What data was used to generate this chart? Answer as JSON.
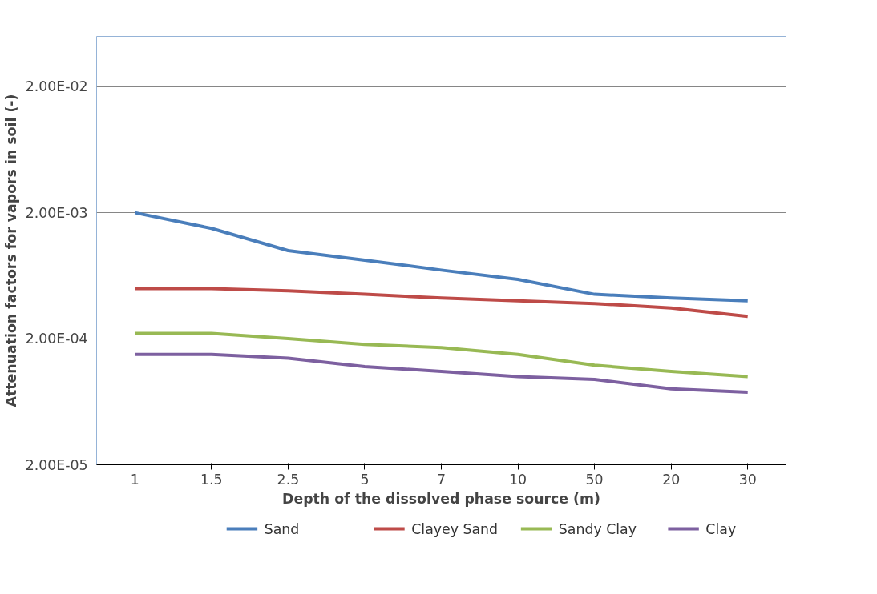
{
  "chart_data": {
    "type": "line",
    "xlabel": "Depth of the dissolved phase source (m)",
    "ylabel": "Attenuation factors for vapors in soil (-)",
    "categories": [
      "1",
      "1.5",
      "2.5",
      "5",
      "7",
      "10",
      "50",
      "20",
      "30"
    ],
    "series": [
      {
        "name": "Sand",
        "color": "#4a7ebb",
        "values": [
          0.002,
          0.0015,
          0.001,
          0.00084,
          0.0007,
          0.00059,
          0.00045,
          0.00042,
          0.0004
        ]
      },
      {
        "name": "Clayey Sand",
        "color": "#be4b48",
        "values": [
          0.0005,
          0.0005,
          0.00048,
          0.00045,
          0.00042,
          0.0004,
          0.00038,
          0.00035,
          0.0003
        ]
      },
      {
        "name": "Sandy Clay",
        "color": "#98b954",
        "values": [
          0.00022,
          0.00022,
          0.0002,
          0.00018,
          0.00017,
          0.00015,
          0.000123,
          0.00011,
          0.0001
        ]
      },
      {
        "name": "Clay",
        "color": "#7d60a0",
        "values": [
          0.00015,
          0.00015,
          0.00014,
          0.00012,
          0.00011,
          0.0001,
          9.5e-05,
          8e-05,
          7.5e-05
        ]
      }
    ],
    "log": "y",
    "ylim": [
      2e-05,
      0.05
    ],
    "yticks": [
      {
        "value": 2e-05,
        "label": "2.00E-05"
      },
      {
        "value": 0.0002,
        "label": "2.00E-04"
      },
      {
        "value": 0.002,
        "label": "2.00E-03"
      },
      {
        "value": 0.02,
        "label": "2.00E-02"
      }
    ],
    "grid": "y",
    "legend": "bottom",
    "marker": "none",
    "line_style": "solid"
  }
}
